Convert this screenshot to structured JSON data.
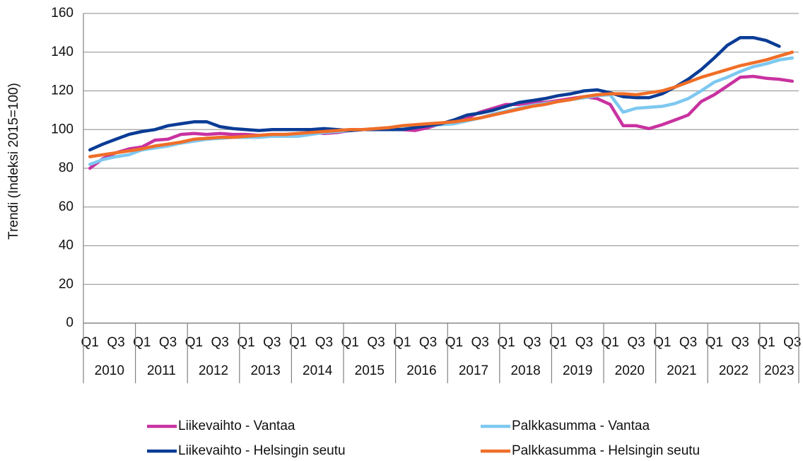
{
  "chart_data": {
    "type": "line",
    "y_label": "Trendi (Indeksi 2015=100)",
    "categories": [
      "Q1",
      null,
      "Q3",
      null,
      "Q1",
      null,
      "Q3",
      null,
      "Q1",
      null,
      "Q3",
      null,
      "Q1",
      null,
      "Q3",
      null,
      "Q1",
      null,
      "Q3",
      null,
      "Q1",
      null,
      "Q3",
      null,
      "Q1",
      null,
      "Q3",
      null,
      "Q1",
      null,
      "Q3",
      null,
      "Q1",
      null,
      "Q3",
      null,
      "Q1",
      null,
      "Q3",
      null,
      "Q1",
      null,
      "Q3",
      null,
      "Q1",
      null,
      "Q3",
      null,
      "Q1",
      null,
      "Q3",
      null,
      "Q1",
      null,
      "Q3"
    ],
    "years": [
      "2010",
      "2011",
      "2012",
      "2013",
      "2014",
      "2015",
      "2016",
      "2017",
      "2018",
      "2019",
      "2020",
      "2021",
      "2022",
      "2023"
    ],
    "ylim": [
      0,
      160
    ],
    "yticks": [
      0,
      20,
      40,
      60,
      80,
      100,
      120,
      140,
      160
    ],
    "grid": true,
    "series": [
      {
        "name": "Liikevaihto - Vantaa",
        "color": "#c832a0",
        "values": [
          80,
          85,
          88,
          90,
          91,
          94.5,
          95,
          97.5,
          98,
          97.5,
          98,
          97.5,
          97.5,
          97,
          97.5,
          97.5,
          97.5,
          98.5,
          98,
          98.5,
          99.5,
          100,
          100,
          100,
          100,
          99.5,
          101,
          103,
          104,
          106,
          109,
          111,
          113,
          113,
          114,
          114,
          115,
          116,
          117,
          116,
          113,
          102,
          102,
          100.5,
          102.5,
          105,
          107.5,
          114.5,
          118,
          122.5,
          127,
          127.5,
          126.5,
          126,
          125
        ]
      },
      {
        "name": "Palkkasumma - Vantaa",
        "color": "#7dc8f0",
        "values": [
          82,
          84.5,
          86,
          87,
          89.5,
          90.5,
          91.5,
          93,
          94,
          95,
          95.5,
          96,
          96,
          96,
          96.5,
          96.5,
          96.5,
          97.5,
          98.5,
          99,
          99.5,
          100,
          100.5,
          101,
          101,
          101.5,
          102,
          102.5,
          103,
          104.5,
          106,
          108,
          109.5,
          111,
          112.5,
          113.5,
          114.5,
          115.5,
          116.5,
          117.5,
          118,
          109,
          111,
          111.5,
          112,
          113.5,
          116,
          120,
          124.5,
          127,
          130,
          132.5,
          134,
          136,
          137
        ]
      },
      {
        "name": "Liikevaihto - Helsingin seutu",
        "color": "#0a3c96",
        "values": [
          89.5,
          92.5,
          95,
          97.5,
          99,
          100,
          102,
          103,
          104,
          104,
          101.5,
          100.5,
          100,
          99.5,
          100,
          100,
          100,
          100,
          100.5,
          100,
          99.5,
          100,
          100,
          100,
          100,
          101,
          102,
          103,
          105,
          107.5,
          108.5,
          110,
          112,
          114,
          115,
          116,
          117.5,
          118.5,
          120,
          120.5,
          119,
          117,
          116.5,
          116.5,
          118.5,
          122,
          126,
          131,
          137,
          143.5,
          147.5,
          147.5,
          146,
          143,
          null
        ]
      },
      {
        "name": "Palkkasumma - Helsingin seutu",
        "color": "#f06e28",
        "values": [
          86,
          87,
          88,
          89,
          90,
          91.5,
          92.5,
          93.5,
          95,
          95.5,
          96,
          96,
          96.5,
          97,
          97.5,
          97.5,
          98,
          98.5,
          99,
          99.5,
          100,
          100,
          100.5,
          101,
          102,
          102.5,
          103,
          103.5,
          104,
          105,
          106,
          107.5,
          109,
          110.5,
          112,
          113,
          114.5,
          115.5,
          117,
          118,
          118.5,
          118.5,
          118,
          119,
          120,
          122,
          124.5,
          127,
          129,
          131,
          133,
          134.5,
          136,
          138,
          140
        ]
      }
    ]
  }
}
